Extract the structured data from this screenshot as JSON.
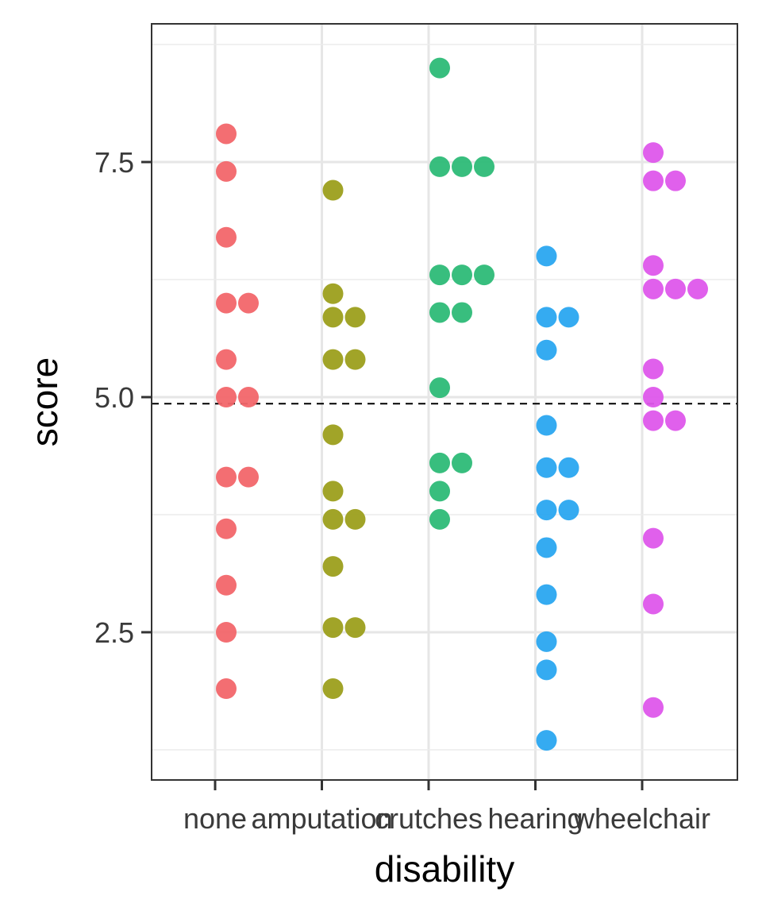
{
  "chart_data": {
    "type": "scatter",
    "style": "dotplot",
    "title": "",
    "xlabel": "disability",
    "ylabel": "score",
    "ylim": [
      1.2,
      9.2
    ],
    "grid": true,
    "legend": "none",
    "categories": [
      "none",
      "amputation",
      "crutches",
      "hearing",
      "wheelchair"
    ],
    "y_ticks": [
      {
        "value": 2.5,
        "label": "2.5"
      },
      {
        "value": 5.0,
        "label": "5.0"
      },
      {
        "value": 7.5,
        "label": "7.5"
      }
    ],
    "reference_line": {
      "value": 4.93,
      "style": "dashed"
    },
    "colors": {
      "none": "#F2666A",
      "amputation": "#9C9F1C",
      "crutches": "#2DBA77",
      "hearing": "#2AA6F0",
      "wheelchair": "#DE57EB"
    },
    "series": [
      {
        "category": "none",
        "values": [
          1.9,
          2.5,
          3.0,
          3.6,
          4.15,
          4.15,
          5.0,
          5.0,
          5.4,
          6.0,
          6.0,
          6.7,
          7.4,
          7.8
        ]
      },
      {
        "category": "amputation",
        "values": [
          1.9,
          2.55,
          2.55,
          3.2,
          3.7,
          3.7,
          4.0,
          4.6,
          5.4,
          5.4,
          5.85,
          5.85,
          6.1,
          7.2
        ]
      },
      {
        "category": "crutches",
        "values": [
          3.7,
          4.0,
          4.3,
          4.3,
          5.1,
          5.9,
          5.9,
          6.3,
          6.3,
          6.3,
          7.45,
          7.45,
          7.45,
          8.5
        ]
      },
      {
        "category": "hearing",
        "values": [
          1.35,
          2.1,
          2.4,
          2.9,
          3.4,
          3.8,
          3.8,
          4.25,
          4.25,
          4.7,
          5.5,
          5.85,
          5.85,
          6.5
        ]
      },
      {
        "category": "wheelchair",
        "values": [
          1.7,
          2.8,
          3.5,
          4.75,
          4.75,
          5.0,
          5.3,
          6.15,
          6.15,
          6.15,
          6.4,
          7.3,
          7.3,
          7.6
        ]
      }
    ]
  }
}
